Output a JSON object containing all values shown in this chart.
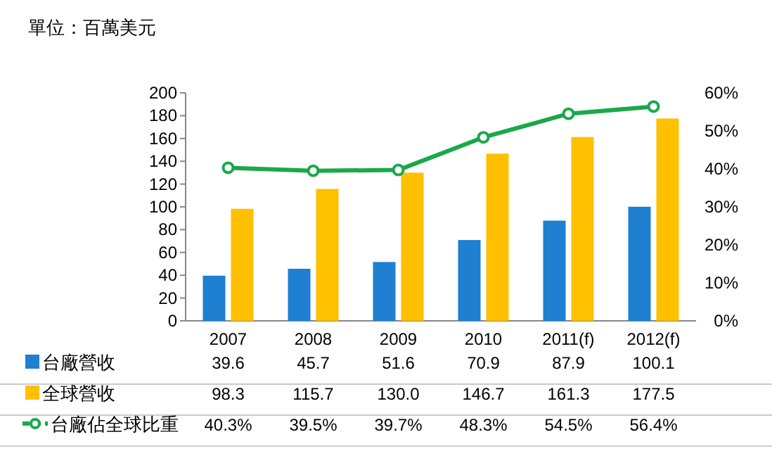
{
  "chart_data": {
    "type": "bar",
    "annotations": [
      "單位：百萬美元"
    ],
    "categories": [
      "2007",
      "2008",
      "2009",
      "2010",
      "2011(f)",
      "2012(f)"
    ],
    "series": [
      {
        "name": "台廠營收",
        "color": "#1f7fd0",
        "values": [
          39.6,
          45.7,
          51.6,
          70.9,
          87.9,
          100.1
        ],
        "value_labels": [
          "39.6",
          "45.7",
          "51.6",
          "70.9",
          "87.9",
          "100.1"
        ]
      },
      {
        "name": "全球營收",
        "color": "#ffc000",
        "values": [
          98.3,
          115.7,
          130.0,
          146.7,
          161.3,
          177.5
        ],
        "value_labels": [
          "98.3",
          "115.7",
          "130.0",
          "146.7",
          "161.3",
          "177.5"
        ]
      },
      {
        "name": "台廠佔全球比重",
        "type": "line",
        "axis": "y2",
        "color": "#1aa84a",
        "marker": "circle",
        "values": [
          40.3,
          39.5,
          39.7,
          48.3,
          54.5,
          56.4
        ],
        "value_labels": [
          "40.3%",
          "39.5%",
          "39.7%",
          "48.3%",
          "54.5%",
          "56.4%"
        ]
      }
    ],
    "ylim": [
      0,
      200
    ],
    "yticks": [
      0,
      20,
      40,
      60,
      80,
      100,
      120,
      140,
      160,
      180,
      200
    ],
    "y2lim": [
      0,
      60
    ],
    "y2ticks": [
      {
        "value": 0,
        "label": "0%"
      },
      {
        "value": 10,
        "label": "10%"
      },
      {
        "value": 20,
        "label": "20%"
      },
      {
        "value": 30,
        "label": "30%"
      },
      {
        "value": 40,
        "label": "40%"
      },
      {
        "value": 50,
        "label": "50%"
      },
      {
        "value": 60,
        "label": "60%"
      }
    ],
    "legend": "bottom",
    "grid": false
  }
}
